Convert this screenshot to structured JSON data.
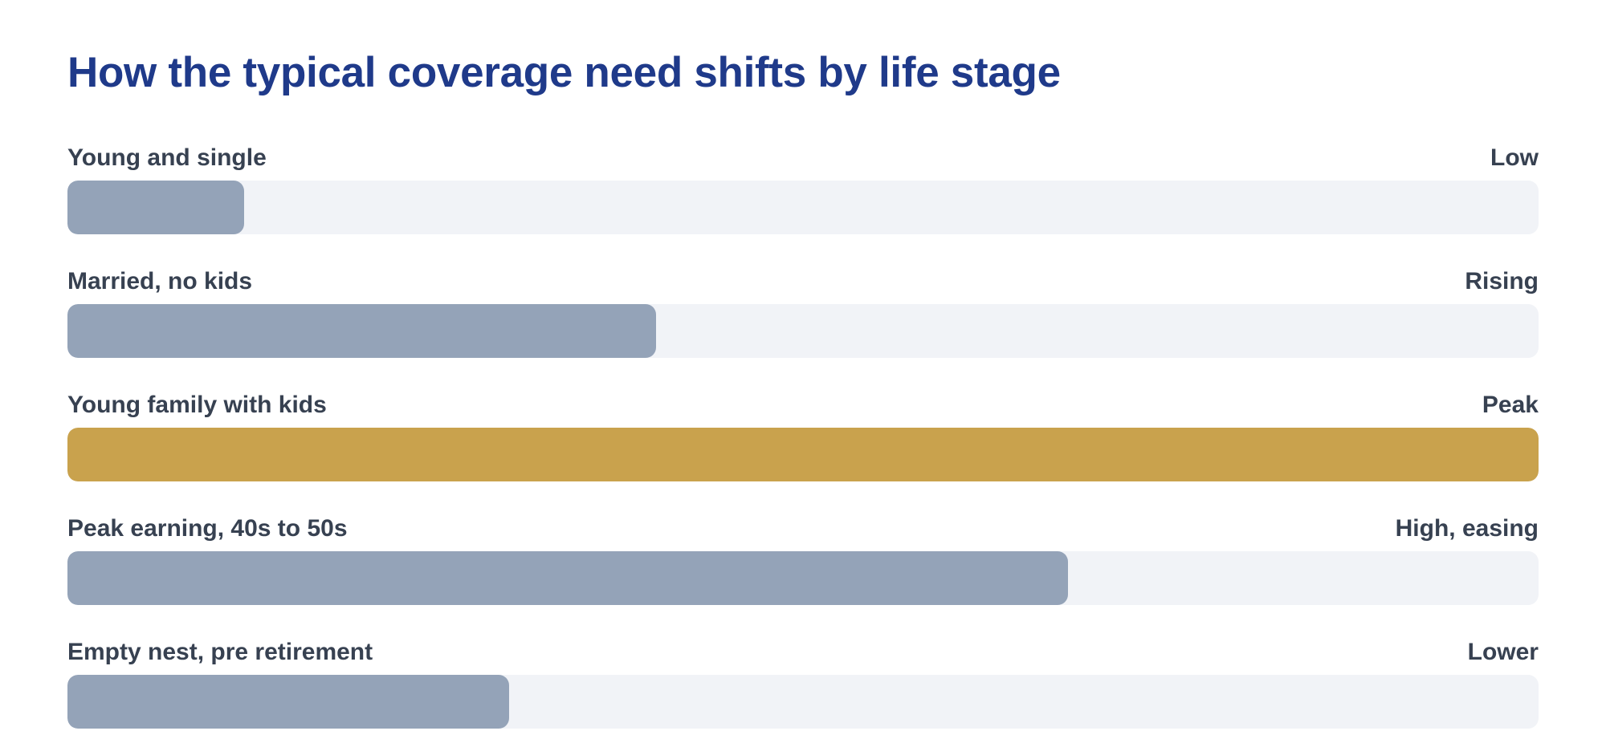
{
  "chart_data": {
    "type": "bar",
    "orientation": "horizontal",
    "title": "How the typical coverage need shifts by life stage",
    "categories": [
      "Young and single",
      "Married, no kids",
      "Young family with kids",
      "Peak earning, 40s to 50s",
      "Empty nest, pre retirement"
    ],
    "level_labels": [
      "Low",
      "Rising",
      "Peak",
      "High, easing",
      "Lower"
    ],
    "values": [
      0.12,
      0.4,
      1.0,
      0.68,
      0.3
    ],
    "value_scale": "fraction of track filled",
    "highlight_index": 2,
    "colors": {
      "title": "#1f3a8a",
      "text": "#374151",
      "track": "#f1f3f7",
      "bar": "#94a3b8",
      "highlight": "#c9a24d"
    }
  }
}
